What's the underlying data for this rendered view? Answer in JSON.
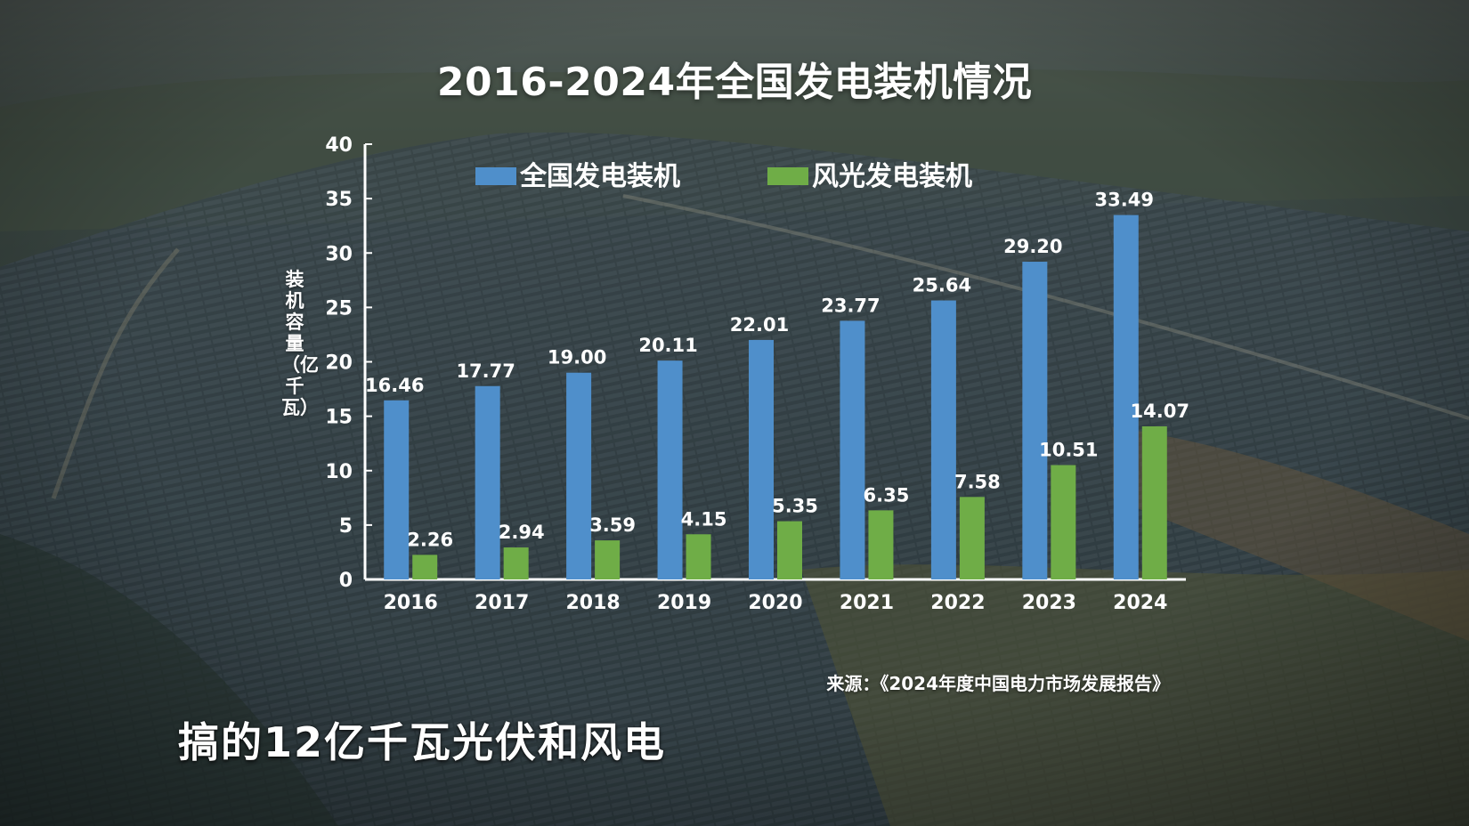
{
  "title": "2016-2024年全国发电装机情况",
  "source": "来源：《2024年度中国电力市场发展报告》",
  "subtitle": "搞的12亿千瓦光伏和风电",
  "chart_data": {
    "type": "bar",
    "title": "2016-2024年全国发电装机情况",
    "xlabel": "",
    "ylabel": "装机容量（亿千瓦）",
    "ylim": [
      0,
      40
    ],
    "yticks": [
      0,
      5,
      10,
      15,
      20,
      25,
      30,
      35,
      40
    ],
    "categories": [
      "2016",
      "2017",
      "2018",
      "2019",
      "2020",
      "2021",
      "2022",
      "2023",
      "2024"
    ],
    "series": [
      {
        "name": "全国发电装机",
        "color": "#4f8fcb",
        "values": [
          16.46,
          17.77,
          19.0,
          20.11,
          22.01,
          23.77,
          25.64,
          29.2,
          33.49
        ],
        "labels": [
          "16.46",
          "17.77",
          "19.00",
          "20.11",
          "22.01",
          "23.77",
          "25.64",
          "29.20",
          "33.49"
        ]
      },
      {
        "name": "风光发电装机",
        "color": "#6fad47",
        "values": [
          2.26,
          2.94,
          3.59,
          4.15,
          5.35,
          6.35,
          7.58,
          10.51,
          14.07
        ],
        "labels": [
          "2.26",
          "2.94",
          "3.59",
          "4.15",
          "5.35",
          "6.35",
          "7.58",
          "10.51",
          "14.07"
        ]
      }
    ],
    "legend": "top-left",
    "grid": false
  }
}
